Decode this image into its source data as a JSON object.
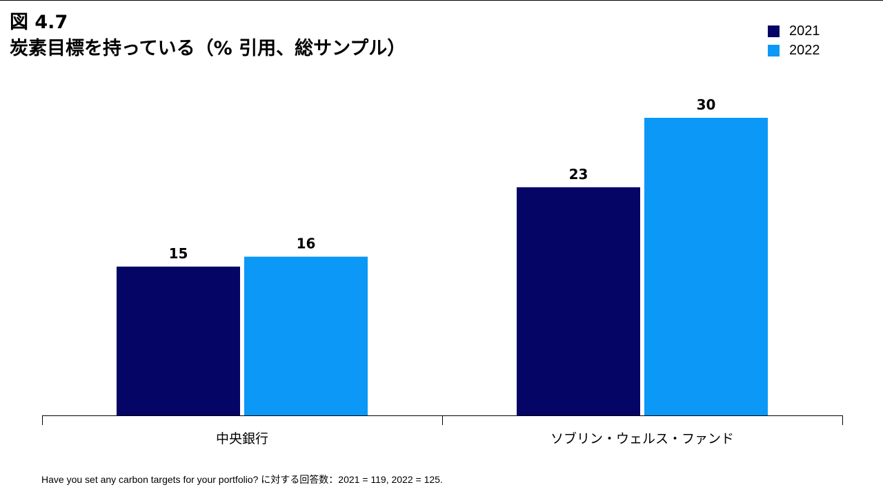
{
  "header": {
    "figure_number": "図 4.7",
    "title": "炭素目標を持っている（% 引用、総サンプル）"
  },
  "footnote": "Have you set any carbon targets for your portfolio? に対する回答数：2021 = 119, 2022 = 125.",
  "chart_data": {
    "type": "bar",
    "categories": [
      "中央銀行",
      "ソブリン・ウェルス・ファンド"
    ],
    "series": [
      {
        "name": "2021",
        "values": [
          15,
          23
        ],
        "color": "#050566"
      },
      {
        "name": "2022",
        "values": [
          16,
          30
        ],
        "color": "#0b98f7"
      }
    ],
    "ylim": [
      0,
      30
    ],
    "data_labels": true,
    "grid": false,
    "legend_position": "top-right"
  }
}
